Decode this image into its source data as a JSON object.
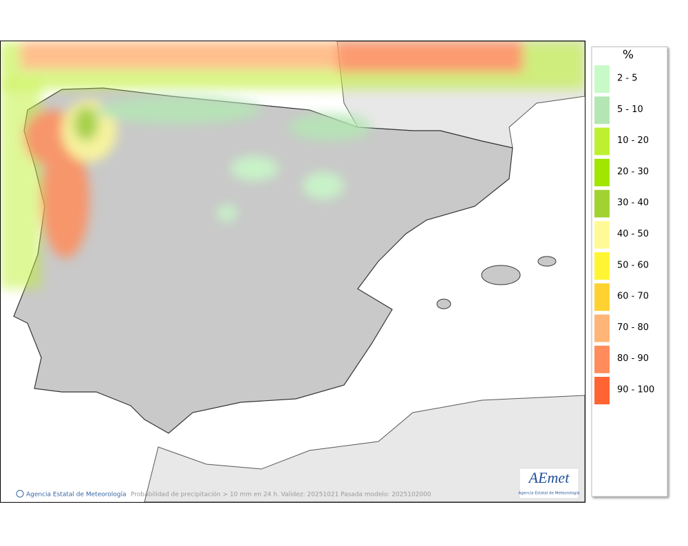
{
  "legend": {
    "title": "%",
    "items": [
      {
        "label": "2 - 5",
        "color": "#c8fac8"
      },
      {
        "label": "5 - 10",
        "color": "#b4e6b4"
      },
      {
        "label": "10 - 20",
        "color": "#bef032"
      },
      {
        "label": "20 - 30",
        "color": "#a0e600"
      },
      {
        "label": "30 - 40",
        "color": "#a0d232"
      },
      {
        "label": "40 - 50",
        "color": "#fffa96"
      },
      {
        "label": "50 - 60",
        "color": "#fff532"
      },
      {
        "label": "60 - 70",
        "color": "#ffd232"
      },
      {
        "label": "70 - 80",
        "color": "#ffb478"
      },
      {
        "label": "80 - 90",
        "color": "#ff8c5a"
      },
      {
        "label": "90 - 100",
        "color": "#ff6432"
      }
    ]
  },
  "footer": {
    "credit": "Agencia Estatal de Meteorología",
    "caption": "Probabilidad de precipitación > 10 mm en 24 h. Validez: 20251021 Pasada modelo: 2025102000"
  },
  "logo": {
    "name": "AEmet",
    "subtitle": "Agencia Estatal de Meteorología"
  }
}
